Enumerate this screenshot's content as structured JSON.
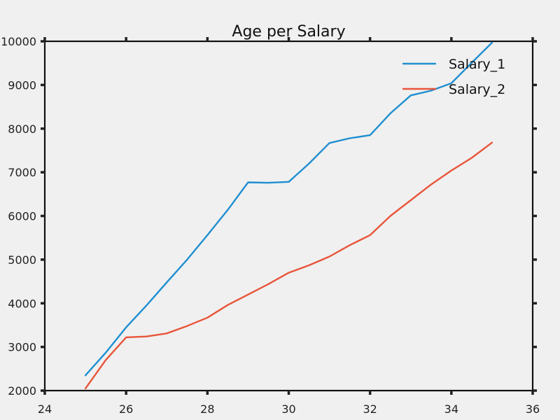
{
  "chart_data": {
    "type": "line",
    "title": "Age per Salary",
    "xlabel": "",
    "ylabel": "",
    "xlim": [
      24,
      36
    ],
    "ylim": [
      2000,
      10000
    ],
    "x_ticks": [
      24,
      26,
      28,
      30,
      32,
      34,
      36
    ],
    "y_ticks": [
      2000,
      3000,
      4000,
      5000,
      6000,
      7000,
      8000,
      9000,
      10000
    ],
    "x_tick_labels": [
      "24",
      "26",
      "28",
      "30",
      "32",
      "34",
      "36"
    ],
    "y_tick_labels": [
      "2000",
      "3000",
      "4000",
      "5000",
      "6000",
      "7000",
      "8000",
      "9000",
      "10000"
    ],
    "grid": false,
    "legend_position": "top-right",
    "series": [
      {
        "name": "Salary_1",
        "color": "#1f8fd0",
        "x": [
          25,
          25.5,
          26,
          26.5,
          27,
          27.5,
          28,
          28.5,
          29,
          29.5,
          30,
          30.5,
          31,
          31.5,
          32,
          32.5,
          33,
          33.5,
          34,
          34.5,
          35
        ],
        "y": [
          2350,
          2870,
          3450,
          3950,
          4480,
          5000,
          5560,
          6140,
          6770,
          6760,
          6780,
          7200,
          7670,
          7780,
          7850,
          8350,
          8760,
          8870,
          9040,
          9510,
          9970
        ]
      },
      {
        "name": "Salary_2",
        "color": "#e8553a",
        "x": [
          25,
          25.5,
          26,
          26.5,
          27,
          27.5,
          28,
          28.5,
          29,
          29.5,
          30,
          30.5,
          31,
          31.5,
          32,
          32.5,
          33,
          33.5,
          34,
          34.5,
          35
        ],
        "y": [
          2050,
          2700,
          3220,
          3240,
          3310,
          3480,
          3670,
          3960,
          4200,
          4440,
          4700,
          4870,
          5070,
          5330,
          5560,
          6000,
          6360,
          6720,
          7040,
          7330,
          7680
        ]
      }
    ]
  }
}
